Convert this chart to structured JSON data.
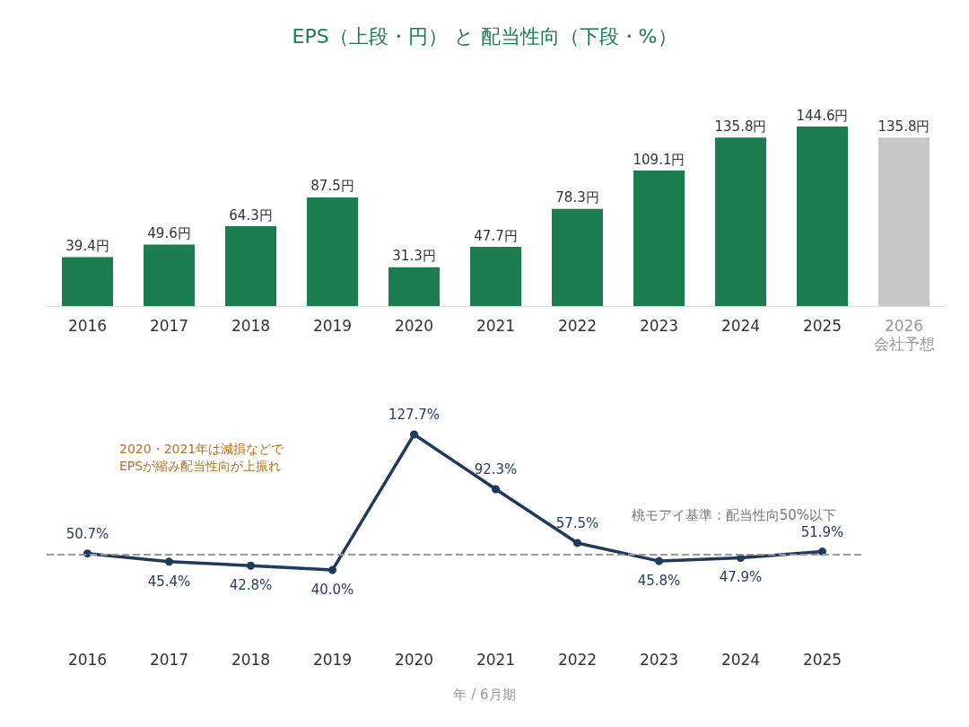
{
  "chart_data": [
    {
      "type": "bar",
      "title": "EPS（上段・円） と 配当性向（下段・%）",
      "categories": [
        "2016",
        "2017",
        "2018",
        "2019",
        "2020",
        "2021",
        "2022",
        "2023",
        "2024",
        "2025",
        "2026\n会社予想"
      ],
      "values": [
        39.4,
        49.6,
        64.3,
        87.5,
        31.3,
        47.7,
        78.3,
        109.1,
        135.8,
        144.6,
        135.8
      ],
      "colors": [
        "#1b7d50",
        "#1b7d50",
        "#1b7d50",
        "#1b7d50",
        "#1b7d50",
        "#1b7d50",
        "#1b7d50",
        "#1b7d50",
        "#1b7d50",
        "#1b7d50",
        "#c8c8c8"
      ],
      "value_labels": [
        "39.4円",
        "49.6円",
        "64.3円",
        "87.5円",
        "31.3円",
        "47.7円",
        "78.3円",
        "109.1円",
        "135.8円",
        "144.6円",
        "135.8円"
      ],
      "tick_labels": "x",
      "grid": false
    },
    {
      "type": "line",
      "xlabel": "年 / 6月期",
      "categories": [
        "2016",
        "2017",
        "2018",
        "2019",
        "2020",
        "2021",
        "2022",
        "2023",
        "2024",
        "2025"
      ],
      "series": [
        {
          "color": "#1f3a5f",
          "values": [
            50.7,
            45.4,
            42.8,
            40.0,
            127.7,
            92.3,
            57.5,
            45.8,
            47.9,
            51.9
          ],
          "value_labels": [
            "50.7%",
            "45.4%",
            "42.8%",
            "40.0%",
            "127.7%",
            "92.3%",
            "57.5%",
            "45.8%",
            "47.9%",
            "51.9%"
          ]
        }
      ],
      "ref_lines": [
        {
          "axis": "y",
          "value": 50,
          "label": "桃モアイ基準：配当性向50%以下",
          "color": "#999999",
          "line_style": "dashed"
        }
      ],
      "annotations": [
        "2020・2021年は減損などで\nEPSが縮み配当性向が上振れ"
      ],
      "marker": "circle",
      "line_style": "solid",
      "tick_labels": "x",
      "grid": false
    }
  ]
}
